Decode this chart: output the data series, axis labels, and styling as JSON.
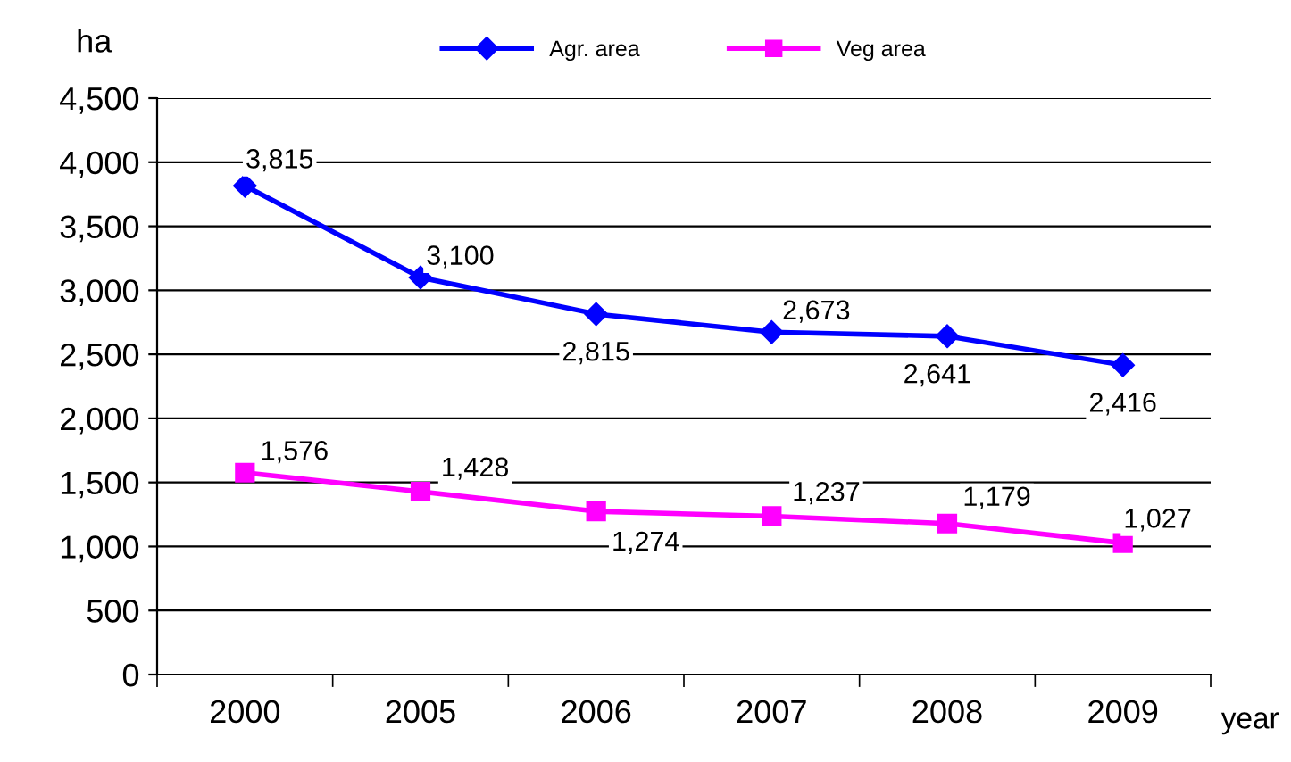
{
  "chart_data": {
    "type": "line",
    "ylabel": "ha",
    "xlabel": "year",
    "categories": [
      "2000",
      "2005",
      "2006",
      "2007",
      "2008",
      "2009"
    ],
    "series": [
      {
        "name": "Agr. area",
        "color": "#0000ff",
        "marker": "diamond",
        "values": [
          3815,
          3100,
          2815,
          2673,
          2641,
          2416
        ],
        "value_labels": [
          "3,815",
          "3,100",
          "2,815",
          "2,673",
          "2,641",
          "2,416"
        ]
      },
      {
        "name": "Veg area",
        "color": "#ff00ff",
        "marker": "square",
        "values": [
          1576,
          1428,
          1274,
          1237,
          1179,
          1027
        ],
        "value_labels": [
          "1,576",
          "1,428",
          "1,274",
          "1,237",
          "1,179",
          "1,027"
        ]
      }
    ],
    "ylim": [
      0,
      4500
    ],
    "yticks": [
      0,
      500,
      {
        "value": 1000,
        "label": "1,000"
      },
      {
        "value": 1500,
        "label": "1,500"
      },
      {
        "value": 2000,
        "label": "2,000"
      },
      {
        "value": 2500,
        "label": "2,500"
      },
      {
        "value": 3000,
        "label": "3,000"
      },
      {
        "value": 3500,
        "label": "3,500"
      },
      {
        "value": 4000,
        "label": "4,000"
      },
      {
        "value": 4500,
        "label": "4,500"
      }
    ],
    "grid": "y",
    "legend": "top",
    "line_style": "solid"
  }
}
